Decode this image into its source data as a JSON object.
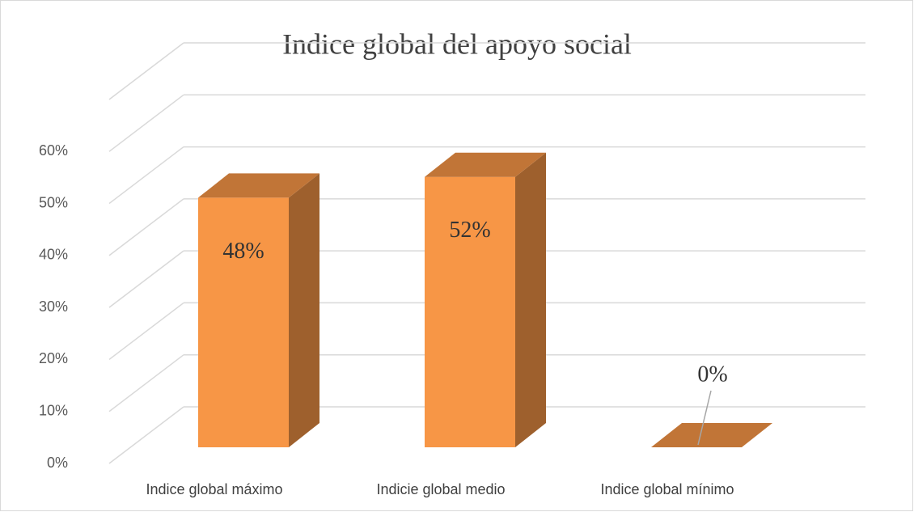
{
  "chart_data": {
    "type": "bar3d",
    "title": "Indice global del apoyo social",
    "categories": [
      "Indice global máximo",
      "Indicie global medio",
      "Indice global mínimo"
    ],
    "values": [
      48,
      52,
      0
    ],
    "value_labels": [
      "48%",
      "52%",
      "0%"
    ],
    "color": "#f79646",
    "ylim": [
      0,
      70
    ],
    "yticks": [
      {
        "value": 0,
        "label": "0%"
      },
      {
        "value": 10,
        "label": "10%"
      },
      {
        "value": 20,
        "label": "20%"
      },
      {
        "value": 30,
        "label": "30%"
      },
      {
        "value": 40,
        "label": "40%"
      },
      {
        "value": 50,
        "label": "50%"
      },
      {
        "value": 60,
        "label": "60%"
      }
    ],
    "grid": true
  }
}
